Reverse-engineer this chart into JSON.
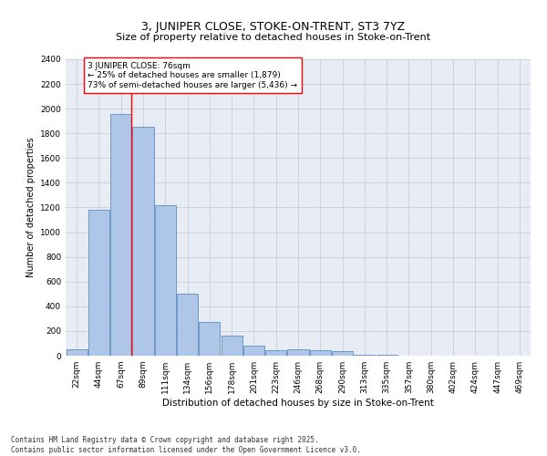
{
  "title": "3, JUNIPER CLOSE, STOKE-ON-TRENT, ST3 7YZ",
  "subtitle": "Size of property relative to detached houses in Stoke-on-Trent",
  "xlabel": "Distribution of detached houses by size in Stoke-on-Trent",
  "ylabel": "Number of detached properties",
  "categories": [
    "22sqm",
    "44sqm",
    "67sqm",
    "89sqm",
    "111sqm",
    "134sqm",
    "156sqm",
    "178sqm",
    "201sqm",
    "223sqm",
    "246sqm",
    "268sqm",
    "290sqm",
    "313sqm",
    "335sqm",
    "357sqm",
    "380sqm",
    "402sqm",
    "424sqm",
    "447sqm",
    "469sqm"
  ],
  "values": [
    50,
    1180,
    1960,
    1850,
    1220,
    500,
    270,
    160,
    80,
    45,
    50,
    45,
    35,
    10,
    5,
    3,
    2,
    1,
    1,
    0,
    0
  ],
  "bar_color": "#aec6e8",
  "bar_edge_color": "#5b8fbf",
  "vline_x_index": 2,
  "vline_color": "red",
  "annotation_text": "3 JUNIPER CLOSE: 76sqm\n← 25% of detached houses are smaller (1,879)\n73% of semi-detached houses are larger (5,436) →",
  "annotation_box_color": "white",
  "annotation_box_edge_color": "red",
  "ylim": [
    0,
    2400
  ],
  "yticks": [
    0,
    200,
    400,
    600,
    800,
    1000,
    1200,
    1400,
    1600,
    1800,
    2000,
    2200,
    2400
  ],
  "grid_color": "#c0c8d8",
  "bg_color": "#e8ecf5",
  "footnote": "Contains HM Land Registry data © Crown copyright and database right 2025.\nContains public sector information licensed under the Open Government Licence v3.0.",
  "title_fontsize": 9,
  "subtitle_fontsize": 8,
  "xlabel_fontsize": 7.5,
  "ylabel_fontsize": 7,
  "tick_fontsize": 6.5,
  "annotation_fontsize": 6.5,
  "footnote_fontsize": 5.5
}
